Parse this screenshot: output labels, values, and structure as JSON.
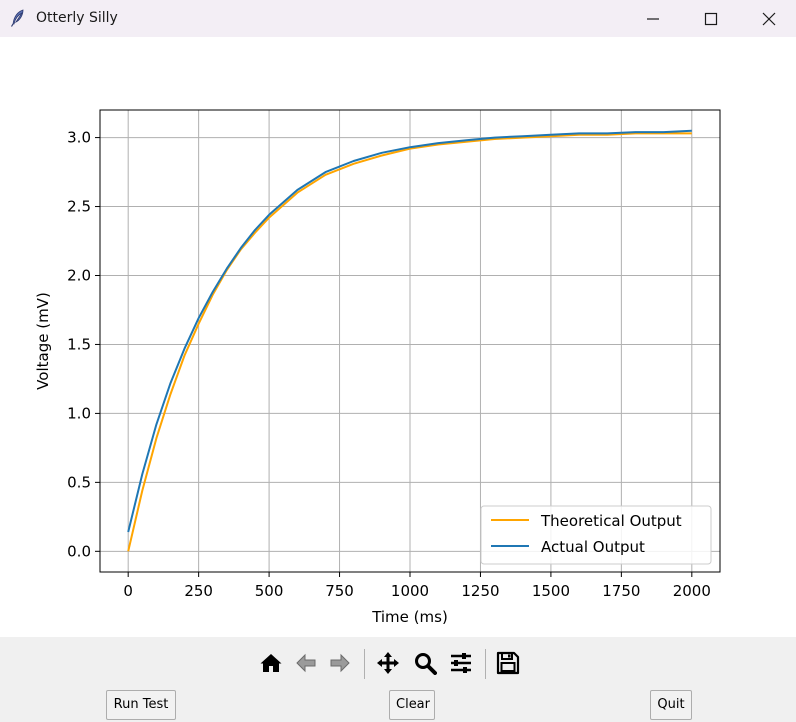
{
  "window": {
    "title": "Otterly Silly",
    "app_icon": "feather-icon",
    "controls": [
      "minimize-icon",
      "maximize-icon",
      "close-icon"
    ]
  },
  "chart_data": {
    "type": "line",
    "title": "",
    "xlabel": "Time (ms)",
    "ylabel": "Voltage (mV)",
    "xlim": [
      -100,
      2100
    ],
    "ylim": [
      -0.15,
      3.2
    ],
    "xticks": [
      0,
      250,
      500,
      750,
      1000,
      1250,
      1500,
      1750,
      2000
    ],
    "xtick_labels": [
      "0",
      "250",
      "500",
      "750",
      "1000",
      "1250",
      "1500",
      "1750",
      "2000"
    ],
    "yticks": [
      0.0,
      0.5,
      1.0,
      1.5,
      2.0,
      2.5,
      3.0
    ],
    "ytick_labels": [
      "0.0",
      "0.5",
      "1.0",
      "1.5",
      "2.0",
      "2.5",
      "3.0"
    ],
    "grid": true,
    "legend_position": "lower-right",
    "series": [
      {
        "name": "Theoretical Output",
        "color": "#ffa500",
        "x": [
          0,
          50,
          100,
          150,
          200,
          250,
          300,
          350,
          400,
          450,
          500,
          600,
          700,
          800,
          900,
          1000,
          1100,
          1200,
          1300,
          1400,
          1500,
          1600,
          1700,
          1800,
          1900,
          2000
        ],
        "y": [
          0.0,
          0.44,
          0.82,
          1.14,
          1.42,
          1.65,
          1.86,
          2.04,
          2.19,
          2.31,
          2.42,
          2.6,
          2.73,
          2.81,
          2.87,
          2.92,
          2.95,
          2.97,
          2.99,
          3.0,
          3.01,
          3.02,
          3.02,
          3.03,
          3.03,
          3.03
        ]
      },
      {
        "name": "Actual Output",
        "color": "#1f77b4",
        "x": [
          0,
          50,
          100,
          150,
          200,
          250,
          300,
          350,
          400,
          450,
          500,
          600,
          700,
          800,
          900,
          1000,
          1100,
          1200,
          1300,
          1400,
          1500,
          1600,
          1700,
          1800,
          1900,
          2000
        ],
        "y": [
          0.14,
          0.56,
          0.92,
          1.22,
          1.47,
          1.69,
          1.88,
          2.05,
          2.2,
          2.33,
          2.44,
          2.62,
          2.75,
          2.83,
          2.89,
          2.93,
          2.96,
          2.98,
          3.0,
          3.01,
          3.02,
          3.03,
          3.03,
          3.04,
          3.04,
          3.05
        ]
      }
    ]
  },
  "toolbar": {
    "tools": [
      "home-icon",
      "back-arrow-icon",
      "forward-arrow-icon",
      "pan-icon",
      "zoom-icon",
      "configure-subplots-icon",
      "save-icon"
    ]
  },
  "buttons": {
    "run_test": "Run Test",
    "clear": "Clear",
    "quit": "Quit"
  }
}
